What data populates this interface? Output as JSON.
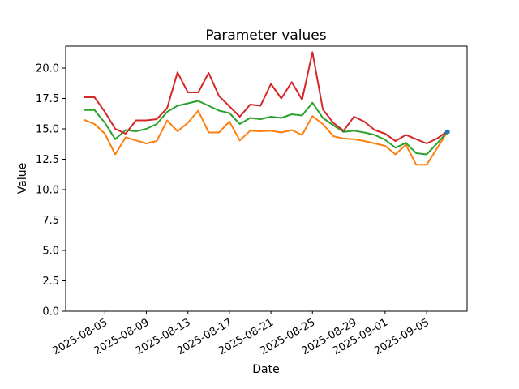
{
  "chart_data": {
    "type": "line",
    "title": "Parameter values",
    "xlabel": "Date",
    "ylabel": "Value",
    "grid": false,
    "legend": "none",
    "ylim": [
      0.0,
      21.8
    ],
    "y_ticks": [
      0.0,
      2.5,
      5.0,
      7.5,
      10.0,
      12.5,
      15.0,
      17.5,
      20.0
    ],
    "x_tick_labels": [
      "2025-08-05",
      "2025-08-09",
      "2025-08-13",
      "2025-08-17",
      "2025-08-21",
      "2025-08-25",
      "2025-08-29",
      "2025-09-01",
      "2025-09-05"
    ],
    "x_dates": [
      "2025-08-03",
      "2025-08-04",
      "2025-08-05",
      "2025-08-06",
      "2025-08-07",
      "2025-08-08",
      "2025-08-09",
      "2025-08-10",
      "2025-08-11",
      "2025-08-12",
      "2025-08-13",
      "2025-08-14",
      "2025-08-15",
      "2025-08-16",
      "2025-08-17",
      "2025-08-18",
      "2025-08-19",
      "2025-08-20",
      "2025-08-21",
      "2025-08-22",
      "2025-08-23",
      "2025-08-24",
      "2025-08-25",
      "2025-08-26",
      "2025-08-27",
      "2025-08-28",
      "2025-08-29",
      "2025-08-30",
      "2025-08-31",
      "2025-09-01",
      "2025-09-02",
      "2025-09-03",
      "2025-09-04",
      "2025-09-05",
      "2025-09-06",
      "2025-09-07"
    ],
    "series": [
      {
        "name": "series-orange",
        "color": "#ff7f0e",
        "values": [
          15.75,
          15.4,
          14.6,
          12.9,
          14.3,
          14.05,
          13.8,
          14.0,
          15.7,
          14.8,
          15.5,
          16.5,
          14.7,
          14.7,
          15.6,
          14.05,
          14.85,
          14.8,
          14.85,
          14.7,
          14.9,
          14.5,
          16.05,
          15.4,
          14.4,
          14.2,
          14.15,
          14.0,
          13.8,
          13.6,
          12.9,
          13.7,
          12.05,
          12.05,
          13.4,
          14.75
        ]
      },
      {
        "name": "series-green",
        "color": "#2ca02c",
        "values": [
          16.55,
          16.55,
          15.5,
          14.15,
          14.9,
          14.8,
          15.0,
          15.4,
          16.4,
          16.9,
          17.1,
          17.3,
          16.9,
          16.5,
          16.3,
          15.4,
          15.9,
          15.8,
          16.0,
          15.9,
          16.2,
          16.1,
          17.15,
          15.9,
          15.3,
          14.75,
          14.85,
          14.7,
          14.5,
          14.1,
          13.45,
          13.85,
          13.0,
          12.9,
          13.8,
          14.75
        ]
      },
      {
        "name": "series-red",
        "color": "#d62728",
        "values": [
          17.6,
          17.6,
          16.4,
          15.0,
          14.6,
          15.7,
          15.7,
          15.8,
          16.7,
          19.65,
          18.0,
          18.0,
          19.6,
          17.7,
          16.85,
          16.0,
          17.0,
          16.9,
          18.7,
          17.5,
          18.85,
          17.4,
          21.3,
          16.6,
          15.5,
          14.85,
          16.0,
          15.6,
          14.9,
          14.6,
          14.0,
          14.5,
          14.15,
          13.8,
          14.2,
          14.8
        ]
      }
    ],
    "end_marker": {
      "date": "2025-09-07",
      "value": 14.75,
      "color": "#1f77b4"
    }
  }
}
